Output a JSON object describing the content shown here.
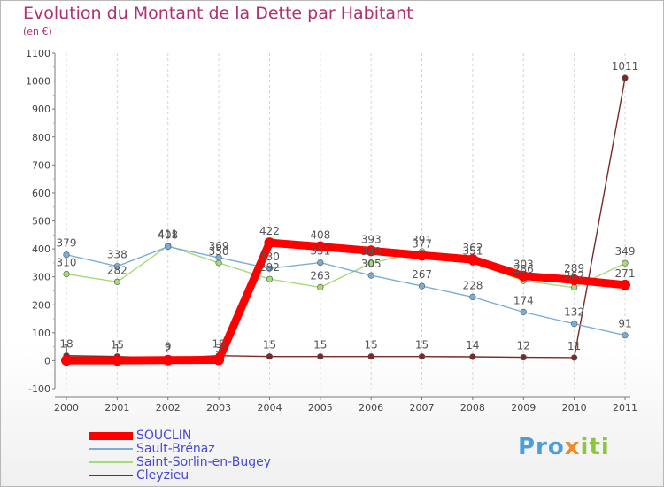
{
  "chart_data": {
    "type": "line",
    "title": "Evolution du Montant de la Dette par Habitant",
    "subtitle": "(en €)",
    "xlabel": "",
    "ylabel": "",
    "x": [
      "2000",
      "2001",
      "2002",
      "2003",
      "2004",
      "2005",
      "2006",
      "2007",
      "2008",
      "2009",
      "2010",
      "2011"
    ],
    "ylim": [
      -100,
      1100
    ],
    "yticks": [
      "-100",
      "0",
      "100",
      "200",
      "300",
      "400",
      "500",
      "600",
      "700",
      "800",
      "900",
      "1000",
      "1100"
    ],
    "grid": "vertical dashed",
    "legend_position": "bottom-left",
    "series": [
      {
        "name": "SOUCLIN",
        "color": "#ff0000",
        "values": [
          1,
          1,
          2,
          3,
          422,
          408,
          393,
          377,
          362,
          303,
          289,
          271
        ],
        "labels": [
          "1",
          "1",
          "2",
          "3",
          "422",
          "408",
          "393",
          "377",
          "362",
          "303",
          "289",
          "271"
        ]
      },
      {
        "name": "Sault-Brénaz",
        "color": "#7aaed8",
        "values": [
          379,
          338,
          408,
          369,
          330,
          351,
          305,
          267,
          228,
          174,
          132,
          91
        ],
        "labels": [
          "379",
          "338",
          "408",
          "369",
          "330",
          "351",
          "305",
          "267",
          "228",
          "174",
          "132",
          "91"
        ]
      },
      {
        "name": "Saint-Sorlin-en-Bugey",
        "color": "#a4dc78",
        "values": [
          310,
          282,
          411,
          350,
          292,
          263,
          349,
          391,
          351,
          286,
          262,
          349
        ],
        "labels": [
          "310",
          "282",
          "411",
          "350",
          "292",
          "263",
          "349",
          "391",
          "351",
          "286",
          "262",
          "349"
        ]
      },
      {
        "name": "Cleyzieu",
        "color": "#7a2a2a",
        "values": [
          18,
          15,
          9,
          18,
          15,
          15,
          15,
          15,
          14,
          12,
          11,
          1011
        ],
        "labels": [
          "18",
          "15",
          "9",
          "18",
          "15",
          "15",
          "15",
          "15",
          "14",
          "12",
          "11",
          "1011"
        ]
      }
    ]
  },
  "logo": {
    "p1": "Pro",
    "p2": "x",
    "p3": "iti"
  }
}
